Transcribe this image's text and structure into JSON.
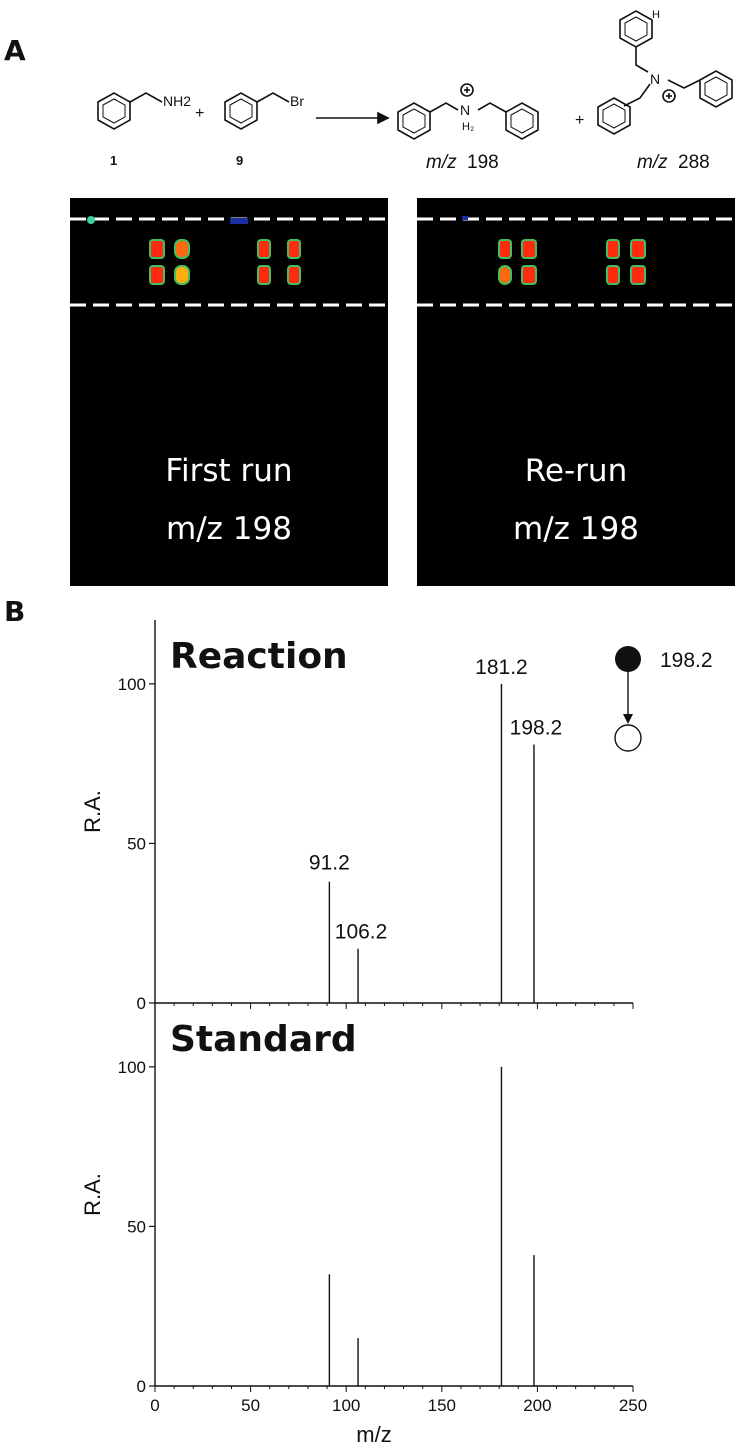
{
  "panel_a_label": "A",
  "panel_b_label": "B",
  "scheme": {
    "reactant1_id": "1",
    "reactant2_id": "9",
    "reactant1_group": "NH2",
    "reactant2_group": "Br",
    "plus": "+",
    "product1_mz_prefix": "m/z",
    "product1_mz_value": "198",
    "product2_mz_prefix": "m/z",
    "product2_mz_value": "288"
  },
  "images": [
    {
      "line1": "First run",
      "line2": "m/z 198"
    },
    {
      "line1": "Re-run",
      "line2": "m/z 198"
    }
  ],
  "chart_data": [
    {
      "type": "bar",
      "title": "Reaction",
      "xlabel": "",
      "ylabel": "R.A.",
      "xlim": [
        0,
        250
      ],
      "ylim": [
        0,
        120
      ],
      "yticks": [
        0,
        50,
        100
      ],
      "x": [
        91.2,
        106.2,
        181.2,
        198.2
      ],
      "values": [
        38,
        17,
        100,
        81
      ],
      "peak_labels": [
        "91.2",
        "106.2",
        "181.2",
        "198.2"
      ],
      "precursor": {
        "label": "198.2"
      }
    },
    {
      "type": "bar",
      "title": "Standard",
      "xlabel": "m/z",
      "ylabel": "R.A.",
      "xlim": [
        0,
        250
      ],
      "ylim": [
        0,
        120
      ],
      "xticks": [
        0,
        50,
        100,
        150,
        200,
        250
      ],
      "yticks": [
        0,
        50,
        100
      ],
      "x": [
        91.2,
        106.2,
        181.2,
        198.2
      ],
      "values": [
        35,
        15,
        100,
        41
      ]
    }
  ]
}
